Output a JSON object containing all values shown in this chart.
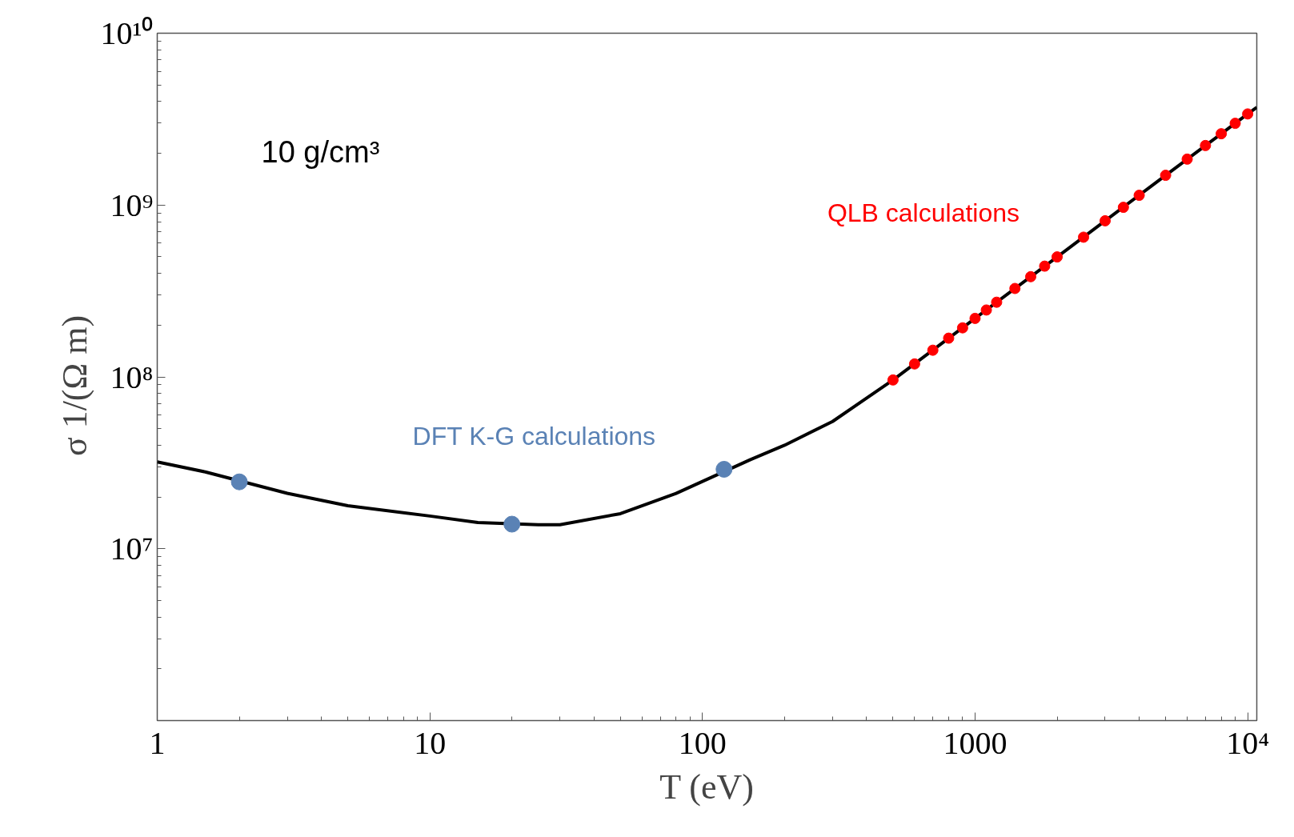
{
  "chart_data": {
    "type": "scatter",
    "xlabel": "T (eV)",
    "ylabel": "σ   1/(Ω m)",
    "log": "xy",
    "xlim": [
      1,
      10800
    ],
    "ylim": [
      1000000,
      10000000000
    ],
    "xticks": [
      1,
      10,
      100,
      1000,
      {
        "value": 10000,
        "label": "10⁴"
      }
    ],
    "yticks": [
      {
        "value": 10000000,
        "label": "10⁷"
      },
      {
        "value": 100000000,
        "label": "10⁸"
      },
      {
        "value": 1000000000,
        "label": "10⁹"
      },
      {
        "value": 10000000000,
        "label": "10¹⁰"
      }
    ],
    "grid": false,
    "annotations": [
      "10 g/cm³"
    ],
    "series": [
      {
        "type": "line",
        "color": "#000000",
        "line_style": "solid",
        "x": [
          1,
          1.5,
          3,
          5,
          10,
          15,
          25,
          30,
          50,
          80,
          150,
          200,
          300,
          500,
          1000,
          2000,
          5000,
          10000,
          10800
        ],
        "values": [
          32000000,
          28000000,
          21000000,
          17800000,
          15500000,
          14200000,
          13800000,
          13800000,
          16000000,
          21000000,
          33000000,
          40000000,
          55000000,
          96000000,
          219000000,
          499000000,
          1490000000,
          3390000000,
          3700000000
        ]
      },
      {
        "name": "DFT K-G calculations",
        "color": "#5a82b5",
        "marker": "circle",
        "x": [
          2,
          20,
          120
        ],
        "values": [
          24500000,
          13900000,
          29000000
        ]
      },
      {
        "name": "QLB calculations",
        "color": "#ff0000",
        "marker": "circle",
        "x": [
          500,
          600,
          700,
          800,
          900,
          1000,
          1100,
          1200,
          1400,
          1600,
          1800,
          2000,
          2500,
          3000,
          3500,
          4000,
          5000,
          6000,
          7000,
          8000,
          9000,
          10000
        ],
        "values": [
          96000000,
          119000000,
          143000000,
          168000000,
          193000000,
          219000000,
          245000000,
          272000000,
          327000000,
          383000000,
          441000000,
          499000000,
          650000000,
          810000000,
          970000000,
          1140000000,
          1490000000,
          1850000000,
          2220000000,
          2600000000,
          2990000000,
          3390000000
        ]
      }
    ]
  }
}
